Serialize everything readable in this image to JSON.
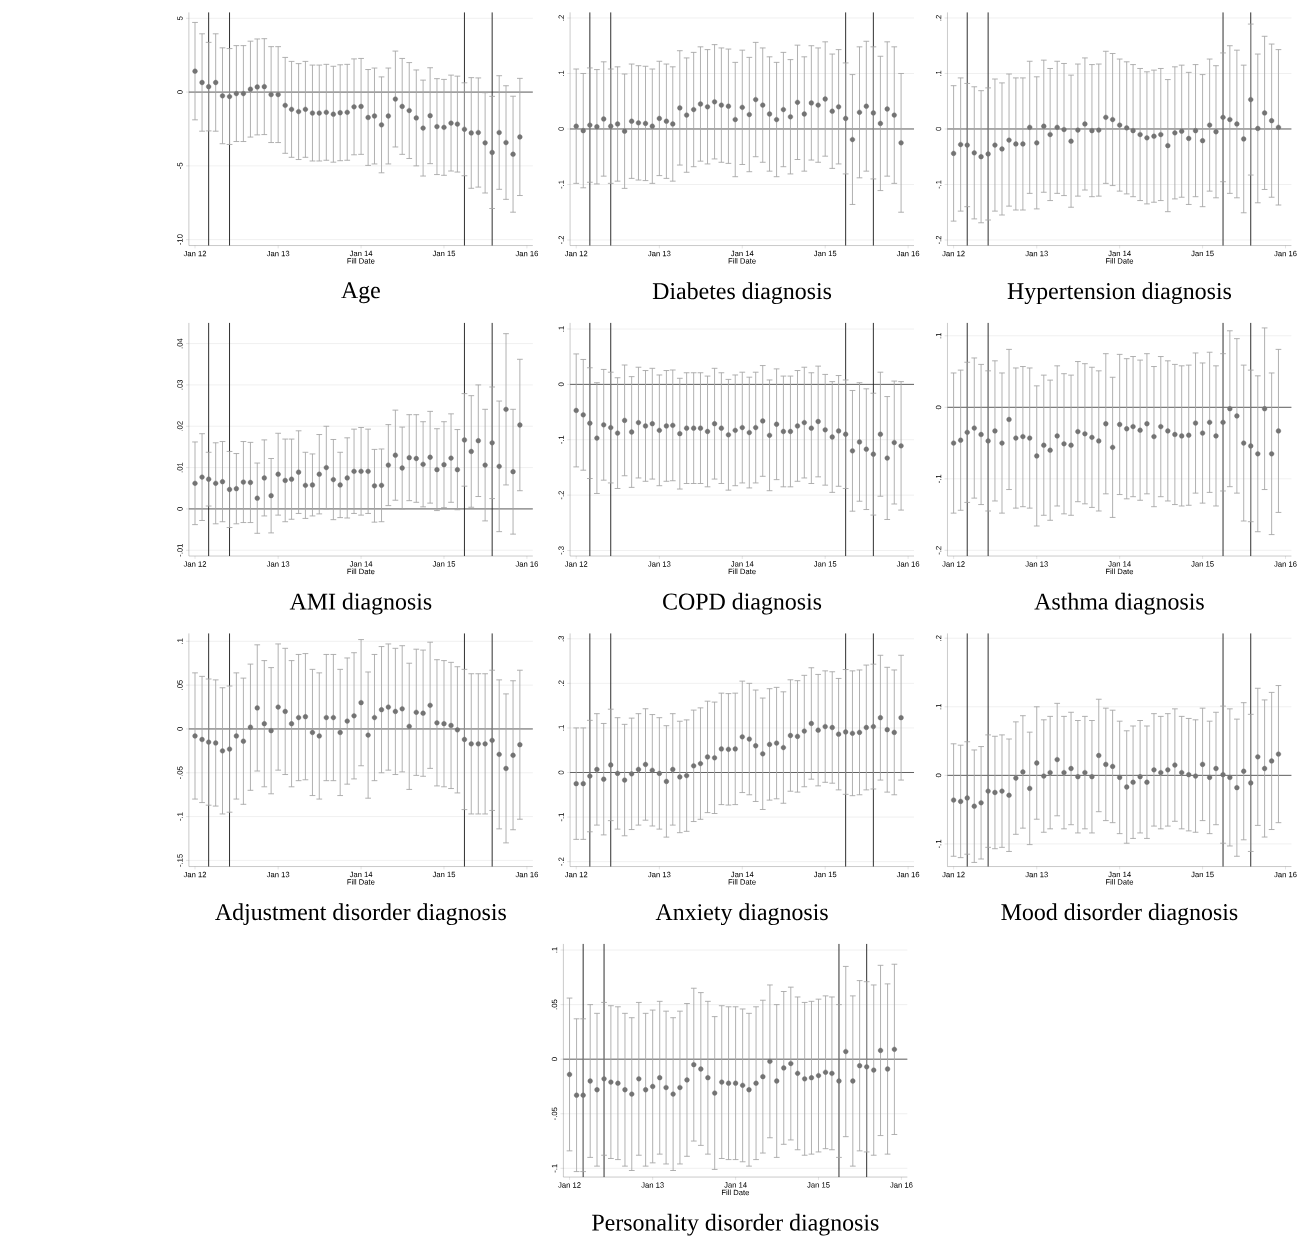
{
  "chart_data": [
    {
      "type": "scatter",
      "title": "Age",
      "xlabel": "Fill Date",
      "marker": "circle",
      "color": "#737373",
      "grid": "y",
      "x": [
        "2012-01",
        "2012-02",
        "2012-03",
        "2012-04",
        "2012-05",
        "2012-06",
        "2012-07",
        "2012-08",
        "2012-09",
        "2012-10",
        "2012-11",
        "2012-12",
        "2013-01",
        "2013-02",
        "2013-03",
        "2013-04",
        "2013-05",
        "2013-06",
        "2013-07",
        "2013-08",
        "2013-09",
        "2013-10",
        "2013-11",
        "2013-12",
        "2014-01",
        "2014-02",
        "2014-03",
        "2014-04",
        "2014-05",
        "2014-06",
        "2014-07",
        "2014-08",
        "2014-09",
        "2014-10",
        "2014-11",
        "2014-12",
        "2015-01",
        "2015-02",
        "2015-03",
        "2015-04",
        "2015-05",
        "2015-06",
        "2015-07",
        "2015-08",
        "2015-09",
        "2015-10",
        "2015-11",
        "2015-12"
      ],
      "values": [
        1.42,
        0.65,
        0.37,
        0.65,
        -0.25,
        -0.3,
        -0.1,
        -0.1,
        0.2,
        0.35,
        0.37,
        -0.17,
        -0.17,
        -0.9,
        -1.17,
        -1.32,
        -1.17,
        -1.42,
        -1.42,
        -1.37,
        -1.5,
        -1.4,
        -1.37,
        -1.0,
        -0.97,
        -1.72,
        -1.62,
        -2.22,
        -1.62,
        -0.47,
        -0.97,
        -1.25,
        -1.75,
        -2.44,
        -1.6,
        -2.34,
        -2.39,
        -2.1,
        -2.17,
        -2.52,
        -2.77,
        -2.74,
        -3.44,
        -4.09,
        -2.74,
        -3.42,
        -4.21,
        -3.04
      ],
      "errors": [
        3.3,
        3.3,
        3.0,
        3.3,
        3.25,
        3.25,
        3.25,
        3.25,
        3.25,
        3.25,
        3.25,
        3.25,
        3.25,
        3.25,
        3.25,
        3.25,
        3.25,
        3.25,
        3.25,
        3.25,
        3.25,
        3.25,
        3.25,
        3.25,
        3.25,
        3.25,
        3.25,
        3.25,
        3.25,
        3.25,
        3.25,
        3.25,
        3.25,
        3.25,
        3.25,
        3.25,
        3.25,
        3.25,
        3.25,
        3.15,
        3.75,
        3.7,
        3.4,
        3.8,
        3.85,
        3.85,
        3.93,
        3.97
      ],
      "xlim": [
        "2011-12-05",
        "2016-01-27"
      ],
      "xticks": [
        {
          "value": "2012-01",
          "label": "Jan 12"
        },
        {
          "value": "2013-01",
          "label": "Jan 13"
        },
        {
          "value": "2014-01",
          "label": "Jan 14"
        },
        {
          "value": "2015-01",
          "label": "Jan 15"
        },
        {
          "value": "2016-01",
          "label": "Jan 16"
        }
      ],
      "ylim": [
        -10.4,
        5.4
      ],
      "yticks": [
        -10,
        -5,
        0,
        5
      ],
      "ref_lines": [
        {
          "axis": "y",
          "value": 0,
          "color": "#595959"
        },
        {
          "axis": "x",
          "value": "2012-03",
          "color": "#262626"
        },
        {
          "axis": "x",
          "value": "2012-06",
          "color": "#262626"
        },
        {
          "axis": "x",
          "value": "2015-04",
          "color": "#262626"
        },
        {
          "axis": "x",
          "value": "2015-08",
          "color": "#262626"
        }
      ]
    },
    {
      "type": "scatter",
      "title": "Diabetes diagnosis",
      "xlabel": "Fill Date",
      "marker": "circle",
      "color": "#737373",
      "grid": "y",
      "x": [
        "2012-01",
        "2012-02",
        "2012-03",
        "2012-04",
        "2012-05",
        "2012-06",
        "2012-07",
        "2012-08",
        "2012-09",
        "2012-10",
        "2012-11",
        "2012-12",
        "2013-01",
        "2013-02",
        "2013-03",
        "2013-04",
        "2013-05",
        "2013-06",
        "2013-07",
        "2013-08",
        "2013-09",
        "2013-10",
        "2013-11",
        "2013-12",
        "2014-01",
        "2014-02",
        "2014-03",
        "2014-04",
        "2014-05",
        "2014-06",
        "2014-07",
        "2014-08",
        "2014-09",
        "2014-10",
        "2014-11",
        "2014-12",
        "2015-01",
        "2015-02",
        "2015-03",
        "2015-04",
        "2015-05",
        "2015-06",
        "2015-07",
        "2015-08",
        "2015-09",
        "2015-10",
        "2015-11",
        "2015-12"
      ],
      "values": [
        0.005,
        -0.003,
        0.007,
        0.004,
        0.018,
        0.005,
        0.009,
        -0.004,
        0.014,
        0.011,
        0.01,
        0.005,
        0.019,
        0.014,
        0.009,
        0.038,
        0.025,
        0.035,
        0.045,
        0.04,
        0.049,
        0.043,
        0.041,
        0.017,
        0.039,
        0.026,
        0.053,
        0.043,
        0.027,
        0.017,
        0.035,
        0.022,
        0.048,
        0.027,
        0.047,
        0.043,
        0.054,
        0.032,
        0.04,
        0.019,
        -0.019,
        0.03,
        0.041,
        0.029,
        0.01,
        0.036,
        0.025,
        -0.025
      ],
      "errors": [
        0.103,
        0.103,
        0.103,
        0.103,
        0.103,
        0.103,
        0.103,
        0.103,
        0.103,
        0.103,
        0.103,
        0.103,
        0.103,
        0.103,
        0.103,
        0.103,
        0.103,
        0.103,
        0.103,
        0.103,
        0.103,
        0.103,
        0.103,
        0.103,
        0.103,
        0.103,
        0.103,
        0.103,
        0.103,
        0.103,
        0.103,
        0.103,
        0.103,
        0.103,
        0.103,
        0.103,
        0.103,
        0.103,
        0.103,
        0.1,
        0.117,
        0.118,
        0.117,
        0.119,
        0.121,
        0.121,
        0.123,
        0.125
      ],
      "xlim": [
        "2011-12-05",
        "2016-01-27"
      ],
      "xticks": [
        {
          "value": "2012-01",
          "label": "Jan 12"
        },
        {
          "value": "2013-01",
          "label": "Jan 13"
        },
        {
          "value": "2014-01",
          "label": "Jan 14"
        },
        {
          "value": "2015-01",
          "label": "Jan 15"
        },
        {
          "value": "2016-01",
          "label": "Jan 16"
        }
      ],
      "ylim": [
        -0.21,
        0.21
      ],
      "yticks": [
        {
          "value": -0.2,
          "label": "-.2"
        },
        {
          "value": -0.1,
          "label": "-.1"
        },
        0,
        {
          "value": 0.1,
          "label": ".1"
        },
        {
          "value": 0.2,
          "label": ".2"
        }
      ],
      "ref_lines": [
        {
          "axis": "y",
          "value": 0,
          "color": "#595959"
        },
        {
          "axis": "x",
          "value": "2012-03",
          "color": "#262626"
        },
        {
          "axis": "x",
          "value": "2012-06",
          "color": "#262626"
        },
        {
          "axis": "x",
          "value": "2015-04",
          "color": "#262626"
        },
        {
          "axis": "x",
          "value": "2015-08",
          "color": "#262626"
        }
      ]
    },
    {
      "type": "scatter",
      "title": "Hypertension diagnosis",
      "xlabel": "Fill Date",
      "marker": "circle",
      "color": "#737373",
      "grid": "y",
      "x": [
        "2012-01",
        "2012-02",
        "2012-03",
        "2012-04",
        "2012-05",
        "2012-06",
        "2012-07",
        "2012-08",
        "2012-09",
        "2012-10",
        "2012-11",
        "2012-12",
        "2013-01",
        "2013-02",
        "2013-03",
        "2013-04",
        "2013-05",
        "2013-06",
        "2013-07",
        "2013-08",
        "2013-09",
        "2013-10",
        "2013-11",
        "2013-12",
        "2014-01",
        "2014-02",
        "2014-03",
        "2014-04",
        "2014-05",
        "2014-06",
        "2014-07",
        "2014-08",
        "2014-09",
        "2014-10",
        "2014-11",
        "2014-12",
        "2015-01",
        "2015-02",
        "2015-03",
        "2015-04",
        "2015-05",
        "2015-06",
        "2015-07",
        "2015-08",
        "2015-09",
        "2015-10",
        "2015-11",
        "2015-12"
      ],
      "values": [
        -0.044,
        -0.028,
        -0.029,
        -0.043,
        -0.05,
        -0.045,
        -0.029,
        -0.036,
        -0.02,
        -0.027,
        -0.027,
        0.003,
        -0.025,
        0.005,
        -0.01,
        0.003,
        -0.001,
        -0.022,
        -0.002,
        0.009,
        -0.003,
        -0.002,
        0.021,
        0.017,
        0.007,
        0.002,
        -0.003,
        -0.01,
        -0.016,
        -0.013,
        -0.01,
        -0.03,
        -0.007,
        -0.004,
        -0.017,
        -0.003,
        -0.021,
        0.007,
        -0.005,
        0.021,
        0.017,
        0.009,
        -0.018,
        0.053,
        0.001,
        0.029,
        0.015,
        0.003
      ],
      "errors": [
        0.122,
        0.12,
        0.111,
        0.119,
        0.119,
        0.119,
        0.119,
        0.119,
        0.119,
        0.119,
        0.119,
        0.119,
        0.119,
        0.119,
        0.119,
        0.119,
        0.119,
        0.119,
        0.119,
        0.119,
        0.119,
        0.119,
        0.119,
        0.119,
        0.119,
        0.119,
        0.119,
        0.119,
        0.119,
        0.119,
        0.119,
        0.119,
        0.119,
        0.119,
        0.119,
        0.119,
        0.119,
        0.119,
        0.119,
        0.116,
        0.133,
        0.133,
        0.133,
        0.136,
        0.134,
        0.138,
        0.138,
        0.14
      ],
      "xlim": [
        "2011-12-05",
        "2016-01-27"
      ],
      "xticks": [
        {
          "value": "2012-01",
          "label": "Jan 12"
        },
        {
          "value": "2013-01",
          "label": "Jan 13"
        },
        {
          "value": "2014-01",
          "label": "Jan 14"
        },
        {
          "value": "2015-01",
          "label": "Jan 15"
        },
        {
          "value": "2016-01",
          "label": "Jan 16"
        }
      ],
      "ylim": [
        -0.21,
        0.21
      ],
      "yticks": [
        {
          "value": -0.2,
          "label": "-.2"
        },
        {
          "value": -0.1,
          "label": "-.1"
        },
        0,
        {
          "value": 0.1,
          "label": ".1"
        },
        {
          "value": 0.2,
          "label": ".2"
        }
      ],
      "ref_lines": [
        {
          "axis": "y",
          "value": 0,
          "color": "#595959"
        },
        {
          "axis": "x",
          "value": "2012-03",
          "color": "#262626"
        },
        {
          "axis": "x",
          "value": "2012-06",
          "color": "#262626"
        },
        {
          "axis": "x",
          "value": "2015-04",
          "color": "#262626"
        },
        {
          "axis": "x",
          "value": "2015-08",
          "color": "#262626"
        }
      ]
    },
    {
      "type": "scatter",
      "title": "AMI diagnosis",
      "xlabel": "Fill Date",
      "marker": "circle",
      "color": "#737373",
      "grid": "y",
      "x": [
        "2012-01",
        "2012-02",
        "2012-03",
        "2012-04",
        "2012-05",
        "2012-06",
        "2012-07",
        "2012-08",
        "2012-09",
        "2012-10",
        "2012-11",
        "2012-12",
        "2013-01",
        "2013-02",
        "2013-03",
        "2013-04",
        "2013-05",
        "2013-06",
        "2013-07",
        "2013-08",
        "2013-09",
        "2013-10",
        "2013-11",
        "2013-12",
        "2014-01",
        "2014-02",
        "2014-03",
        "2014-04",
        "2014-05",
        "2014-06",
        "2014-07",
        "2014-08",
        "2014-09",
        "2014-10",
        "2014-11",
        "2014-12",
        "2015-01",
        "2015-02",
        "2015-03",
        "2015-04",
        "2015-05",
        "2015-06",
        "2015-07",
        "2015-08",
        "2015-09",
        "2015-10",
        "2015-11",
        "2015-12"
      ],
      "values": [
        0.0062,
        0.0077,
        0.0072,
        0.0062,
        0.0066,
        0.0047,
        0.0049,
        0.0065,
        0.0064,
        0.0026,
        0.0075,
        0.0032,
        0.0084,
        0.0069,
        0.0072,
        0.0089,
        0.0057,
        0.0058,
        0.0084,
        0.01,
        0.0071,
        0.0058,
        0.0075,
        0.0091,
        0.0091,
        0.0091,
        0.0056,
        0.0057,
        0.0106,
        0.013,
        0.0099,
        0.0124,
        0.0122,
        0.0108,
        0.0125,
        0.0095,
        0.0107,
        0.0123,
        0.0095,
        0.0167,
        0.0139,
        0.0165,
        0.0106,
        0.016,
        0.0103,
        0.0241,
        0.009,
        0.0203
      ],
      "errors": [
        0.01,
        0.0105,
        0.0065,
        0.0098,
        0.0097,
        0.0092,
        0.0085,
        0.0098,
        0.0097,
        0.0085,
        0.0092,
        0.009,
        0.0099,
        0.01,
        0.0097,
        0.01,
        0.008,
        0.0075,
        0.0096,
        0.01,
        0.0097,
        0.0079,
        0.0097,
        0.0102,
        0.0106,
        0.0102,
        0.0088,
        0.0088,
        0.0098,
        0.0109,
        0.0099,
        0.0104,
        0.0106,
        0.0103,
        0.0111,
        0.0099,
        0.0104,
        0.0107,
        0.0097,
        0.0112,
        0.0135,
        0.0135,
        0.0135,
        0.0135,
        0.0158,
        0.0183,
        0.0151,
        0.0159
      ],
      "xlim": [
        "2011-12-05",
        "2016-01-27"
      ],
      "xticks": [
        {
          "value": "2012-01",
          "label": "Jan 12"
        },
        {
          "value": "2013-01",
          "label": "Jan 13"
        },
        {
          "value": "2014-01",
          "label": "Jan 14"
        },
        {
          "value": "2015-01",
          "label": "Jan 15"
        },
        {
          "value": "2016-01",
          "label": "Jan 16"
        }
      ],
      "ylim": [
        -0.0114,
        0.045
      ],
      "yticks": [
        {
          "value": -0.01,
          "label": "-.01"
        },
        0,
        {
          "value": 0.01,
          "label": ".01"
        },
        {
          "value": 0.02,
          "label": ".02"
        },
        {
          "value": 0.03,
          "label": ".03"
        },
        {
          "value": 0.04,
          "label": ".04"
        }
      ],
      "ref_lines": [
        {
          "axis": "y",
          "value": 0,
          "color": "#595959"
        },
        {
          "axis": "x",
          "value": "2012-03",
          "color": "#262626"
        },
        {
          "axis": "x",
          "value": "2012-06",
          "color": "#262626"
        },
        {
          "axis": "x",
          "value": "2015-04",
          "color": "#262626"
        },
        {
          "axis": "x",
          "value": "2015-08",
          "color": "#262626"
        }
      ]
    },
    {
      "type": "scatter",
      "title": "COPD diagnosis",
      "xlabel": "Fill Date",
      "marker": "circle",
      "color": "#737373",
      "grid": "y",
      "x": [
        "2012-01",
        "2012-02",
        "2012-03",
        "2012-04",
        "2012-05",
        "2012-06",
        "2012-07",
        "2012-08",
        "2012-09",
        "2012-10",
        "2012-11",
        "2012-12",
        "2013-01",
        "2013-02",
        "2013-03",
        "2013-04",
        "2013-05",
        "2013-06",
        "2013-07",
        "2013-08",
        "2013-09",
        "2013-10",
        "2013-11",
        "2013-12",
        "2014-01",
        "2014-02",
        "2014-03",
        "2014-04",
        "2014-05",
        "2014-06",
        "2014-07",
        "2014-08",
        "2014-09",
        "2014-10",
        "2014-11",
        "2014-12",
        "2015-01",
        "2015-02",
        "2015-03",
        "2015-04",
        "2015-05",
        "2015-06",
        "2015-07",
        "2015-08",
        "2015-09",
        "2015-10",
        "2015-11",
        "2015-12"
      ],
      "values": [
        -0.047,
        -0.055,
        -0.07,
        -0.097,
        -0.073,
        -0.078,
        -0.088,
        -0.065,
        -0.086,
        -0.069,
        -0.075,
        -0.071,
        -0.083,
        -0.075,
        -0.074,
        -0.089,
        -0.079,
        -0.079,
        -0.079,
        -0.085,
        -0.071,
        -0.079,
        -0.091,
        -0.083,
        -0.078,
        -0.087,
        -0.078,
        -0.066,
        -0.092,
        -0.072,
        -0.085,
        -0.085,
        -0.075,
        -0.069,
        -0.079,
        -0.067,
        -0.082,
        -0.095,
        -0.084,
        -0.09,
        -0.12,
        -0.104,
        -0.117,
        -0.126,
        -0.09,
        -0.133,
        -0.105,
        -0.111
      ],
      "errors": [
        0.102,
        0.1,
        0.1,
        0.1,
        0.1,
        0.1,
        0.1,
        0.1,
        0.1,
        0.1,
        0.1,
        0.1,
        0.1,
        0.1,
        0.1,
        0.1,
        0.1,
        0.1,
        0.1,
        0.1,
        0.1,
        0.1,
        0.1,
        0.1,
        0.1,
        0.1,
        0.1,
        0.1,
        0.1,
        0.1,
        0.1,
        0.1,
        0.1,
        0.1,
        0.1,
        0.1,
        0.1,
        0.1,
        0.1,
        0.098,
        0.109,
        0.107,
        0.109,
        0.11,
        0.112,
        0.111,
        0.111,
        0.116
      ],
      "xlim": [
        "2011-12-05",
        "2016-01-27"
      ],
      "xticks": [
        {
          "value": "2012-01",
          "label": "Jan 12"
        },
        {
          "value": "2013-01",
          "label": "Jan 13"
        },
        {
          "value": "2014-01",
          "label": "Jan 14"
        },
        {
          "value": "2015-01",
          "label": "Jan 15"
        },
        {
          "value": "2016-01",
          "label": "Jan 16"
        }
      ],
      "ylim": [
        -0.31,
        0.111
      ],
      "yticks": [
        {
          "value": -0.3,
          "label": "-.3"
        },
        {
          "value": -0.2,
          "label": "-.2"
        },
        {
          "value": -0.1,
          "label": "-.1"
        },
        0,
        {
          "value": 0.1,
          "label": ".1"
        }
      ],
      "ref_lines": [
        {
          "axis": "y",
          "value": 0,
          "color": "#595959"
        },
        {
          "axis": "x",
          "value": "2012-03",
          "color": "#262626"
        },
        {
          "axis": "x",
          "value": "2012-06",
          "color": "#262626"
        },
        {
          "axis": "x",
          "value": "2015-04",
          "color": "#262626"
        },
        {
          "axis": "x",
          "value": "2015-08",
          "color": "#262626"
        }
      ]
    },
    {
      "type": "scatter",
      "title": "Asthma diagnosis",
      "xlabel": "Fill Date",
      "marker": "circle",
      "color": "#737373",
      "grid": "y",
      "x": [
        "2012-01",
        "2012-02",
        "2012-03",
        "2012-04",
        "2012-05",
        "2012-06",
        "2012-07",
        "2012-08",
        "2012-09",
        "2012-10",
        "2012-11",
        "2012-12",
        "2013-01",
        "2013-02",
        "2013-03",
        "2013-04",
        "2013-05",
        "2013-06",
        "2013-07",
        "2013-08",
        "2013-09",
        "2013-10",
        "2013-11",
        "2013-12",
        "2014-01",
        "2014-02",
        "2014-03",
        "2014-04",
        "2014-05",
        "2014-06",
        "2014-07",
        "2014-08",
        "2014-09",
        "2014-10",
        "2014-11",
        "2014-12",
        "2015-01",
        "2015-02",
        "2015-03",
        "2015-04",
        "2015-05",
        "2015-06",
        "2015-07",
        "2015-08",
        "2015-09",
        "2015-10",
        "2015-11",
        "2015-12"
      ],
      "values": [
        -0.05,
        -0.046,
        -0.035,
        -0.029,
        -0.038,
        -0.047,
        -0.033,
        -0.05,
        -0.017,
        -0.043,
        -0.041,
        -0.043,
        -0.068,
        -0.053,
        -0.06,
        -0.04,
        -0.051,
        -0.053,
        -0.034,
        -0.037,
        -0.042,
        -0.047,
        -0.023,
        -0.056,
        -0.024,
        -0.03,
        -0.027,
        -0.032,
        -0.023,
        -0.041,
        -0.027,
        -0.033,
        -0.038,
        -0.04,
        -0.039,
        -0.022,
        -0.036,
        -0.021,
        -0.04,
        -0.021,
        -0.002,
        -0.012,
        -0.05,
        -0.054,
        -0.065,
        -0.002,
        -0.065,
        -0.033
      ],
      "errors": [
        0.098,
        0.098,
        0.098,
        0.098,
        0.098,
        0.098,
        0.098,
        0.098,
        0.098,
        0.098,
        0.098,
        0.098,
        0.098,
        0.098,
        0.098,
        0.098,
        0.098,
        0.098,
        0.098,
        0.098,
        0.098,
        0.098,
        0.098,
        0.098,
        0.098,
        0.098,
        0.098,
        0.098,
        0.098,
        0.098,
        0.098,
        0.098,
        0.098,
        0.098,
        0.098,
        0.098,
        0.098,
        0.098,
        0.098,
        0.096,
        0.109,
        0.108,
        0.109,
        0.106,
        0.109,
        0.113,
        0.113,
        0.114
      ],
      "xlim": [
        "2011-12-05",
        "2016-01-27"
      ],
      "xticks": [
        {
          "value": "2012-01",
          "label": "Jan 12"
        },
        {
          "value": "2013-01",
          "label": "Jan 13"
        },
        {
          "value": "2014-01",
          "label": "Jan 14"
        },
        {
          "value": "2015-01",
          "label": "Jan 15"
        },
        {
          "value": "2016-01",
          "label": "Jan 16"
        }
      ],
      "ylim": [
        -0.208,
        0.118
      ],
      "yticks": [
        {
          "value": -0.2,
          "label": "-.2"
        },
        {
          "value": -0.1,
          "label": "-.1"
        },
        0,
        {
          "value": 0.1,
          "label": ".1"
        }
      ],
      "ref_lines": [
        {
          "axis": "y",
          "value": 0,
          "color": "#595959"
        },
        {
          "axis": "x",
          "value": "2012-03",
          "color": "#262626"
        },
        {
          "axis": "x",
          "value": "2012-06",
          "color": "#262626"
        },
        {
          "axis": "x",
          "value": "2015-04",
          "color": "#262626"
        },
        {
          "axis": "x",
          "value": "2015-08",
          "color": "#262626"
        }
      ]
    },
    {
      "type": "scatter",
      "title": "Adjustment disorder diagnosis",
      "xlabel": "Fill Date",
      "marker": "circle",
      "color": "#737373",
      "grid": "y",
      "x": [
        "2012-01",
        "2012-02",
        "2012-03",
        "2012-04",
        "2012-05",
        "2012-06",
        "2012-07",
        "2012-08",
        "2012-09",
        "2012-10",
        "2012-11",
        "2012-12",
        "2013-01",
        "2013-02",
        "2013-03",
        "2013-04",
        "2013-05",
        "2013-06",
        "2013-07",
        "2013-08",
        "2013-09",
        "2013-10",
        "2013-11",
        "2013-12",
        "2014-01",
        "2014-02",
        "2014-03",
        "2014-04",
        "2014-05",
        "2014-06",
        "2014-07",
        "2014-08",
        "2014-09",
        "2014-10",
        "2014-11",
        "2014-12",
        "2015-01",
        "2015-02",
        "2015-03",
        "2015-04",
        "2015-05",
        "2015-06",
        "2015-07",
        "2015-08",
        "2015-09",
        "2015-10",
        "2015-11",
        "2015-12"
      ],
      "values": [
        -0.008,
        -0.012,
        -0.015,
        -0.016,
        -0.025,
        -0.023,
        -0.008,
        -0.014,
        0.002,
        0.024,
        0.006,
        -0.002,
        0.025,
        0.02,
        0.006,
        0.013,
        0.014,
        -0.004,
        -0.008,
        0.013,
        0.013,
        -0.004,
        0.009,
        0.015,
        0.03,
        -0.007,
        0.013,
        0.022,
        0.025,
        0.02,
        0.023,
        0.003,
        0.019,
        0.018,
        0.027,
        0.007,
        0.006,
        0.004,
        -0.001,
        -0.012,
        -0.017,
        -0.017,
        -0.017,
        -0.013,
        -0.029,
        -0.045,
        -0.03,
        -0.018
      ],
      "errors": [
        0.072,
        0.072,
        0.072,
        0.072,
        0.072,
        0.072,
        0.072,
        0.072,
        0.072,
        0.072,
        0.072,
        0.072,
        0.072,
        0.072,
        0.072,
        0.072,
        0.072,
        0.072,
        0.072,
        0.072,
        0.072,
        0.072,
        0.072,
        0.072,
        0.072,
        0.072,
        0.072,
        0.072,
        0.072,
        0.072,
        0.072,
        0.072,
        0.072,
        0.072,
        0.072,
        0.072,
        0.072,
        0.072,
        0.072,
        0.08,
        0.08,
        0.08,
        0.08,
        0.08,
        0.085,
        0.085,
        0.085,
        0.085
      ],
      "xlim": [
        "2011-12-05",
        "2016-01-27"
      ],
      "xticks": [
        {
          "value": "2012-01",
          "label": "Jan 12"
        },
        {
          "value": "2013-01",
          "label": "Jan 13"
        },
        {
          "value": "2014-01",
          "label": "Jan 14"
        },
        {
          "value": "2015-01",
          "label": "Jan 15"
        },
        {
          "value": "2016-01",
          "label": "Jan 16"
        }
      ],
      "ylim": [
        -0.157,
        0.109
      ],
      "yticks": [
        {
          "value": -0.15,
          "label": "-.15"
        },
        {
          "value": -0.1,
          "label": "-.1"
        },
        {
          "value": -0.05,
          "label": "-.05"
        },
        0,
        {
          "value": 0.05,
          "label": ".05"
        },
        {
          "value": 0.1,
          "label": ".1"
        }
      ],
      "ref_lines": [
        {
          "axis": "y",
          "value": 0,
          "color": "#595959"
        },
        {
          "axis": "x",
          "value": "2012-03",
          "color": "#262626"
        },
        {
          "axis": "x",
          "value": "2012-06",
          "color": "#262626"
        },
        {
          "axis": "x",
          "value": "2015-04",
          "color": "#262626"
        },
        {
          "axis": "x",
          "value": "2015-08",
          "color": "#262626"
        }
      ]
    },
    {
      "type": "scatter",
      "title": "Anxiety diagnosis",
      "xlabel": "Fill Date",
      "marker": "circle",
      "color": "#737373",
      "grid": "y",
      "x": [
        "2012-01",
        "2012-02",
        "2012-03",
        "2012-04",
        "2012-05",
        "2012-06",
        "2012-07",
        "2012-08",
        "2012-09",
        "2012-10",
        "2012-11",
        "2012-12",
        "2013-01",
        "2013-02",
        "2013-03",
        "2013-04",
        "2013-05",
        "2013-06",
        "2013-07",
        "2013-08",
        "2013-09",
        "2013-10",
        "2013-11",
        "2013-12",
        "2014-01",
        "2014-02",
        "2014-03",
        "2014-04",
        "2014-05",
        "2014-06",
        "2014-07",
        "2014-08",
        "2014-09",
        "2014-10",
        "2014-11",
        "2014-12",
        "2015-01",
        "2015-02",
        "2015-03",
        "2015-04",
        "2015-05",
        "2015-06",
        "2015-07",
        "2015-08",
        "2015-09",
        "2015-10",
        "2015-11",
        "2015-12"
      ],
      "values": [
        -0.025,
        -0.025,
        -0.008,
        0.007,
        -0.015,
        0.017,
        -0.002,
        -0.017,
        -0.003,
        0.007,
        0.018,
        0.005,
        -0.002,
        -0.02,
        0.007,
        -0.01,
        -0.007,
        0.015,
        0.02,
        0.035,
        0.033,
        0.053,
        0.052,
        0.053,
        0.08,
        0.075,
        0.06,
        0.042,
        0.063,
        0.066,
        0.056,
        0.083,
        0.081,
        0.093,
        0.11,
        0.095,
        0.103,
        0.101,
        0.086,
        0.091,
        0.088,
        0.09,
        0.101,
        0.103,
        0.123,
        0.096,
        0.09,
        0.123
      ],
      "errors": [
        0.125,
        0.125,
        0.125,
        0.125,
        0.125,
        0.125,
        0.125,
        0.125,
        0.125,
        0.125,
        0.125,
        0.125,
        0.125,
        0.125,
        0.125,
        0.125,
        0.125,
        0.125,
        0.125,
        0.125,
        0.125,
        0.125,
        0.125,
        0.125,
        0.125,
        0.125,
        0.125,
        0.125,
        0.125,
        0.125,
        0.125,
        0.125,
        0.125,
        0.125,
        0.125,
        0.125,
        0.125,
        0.125,
        0.125,
        0.14,
        0.14,
        0.14,
        0.14,
        0.14,
        0.14,
        0.14,
        0.14,
        0.14
      ],
      "xlim": [
        "2011-12-05",
        "2016-01-27"
      ],
      "xticks": [
        {
          "value": "2012-01",
          "label": "Jan 12"
        },
        {
          "value": "2013-01",
          "label": "Jan 13"
        },
        {
          "value": "2014-01",
          "label": "Jan 14"
        },
        {
          "value": "2015-01",
          "label": "Jan 15"
        },
        {
          "value": "2016-01",
          "label": "Jan 16"
        }
      ],
      "ylim": [
        -0.211,
        0.312
      ],
      "yticks": [
        {
          "value": -0.2,
          "label": "-.2"
        },
        {
          "value": -0.1,
          "label": "-.1"
        },
        0,
        {
          "value": 0.1,
          "label": ".1"
        },
        {
          "value": 0.2,
          "label": ".2"
        },
        {
          "value": 0.3,
          "label": ".3"
        }
      ],
      "ref_lines": [
        {
          "axis": "y",
          "value": 0,
          "color": "#595959"
        },
        {
          "axis": "x",
          "value": "2012-03",
          "color": "#262626"
        },
        {
          "axis": "x",
          "value": "2012-06",
          "color": "#262626"
        },
        {
          "axis": "x",
          "value": "2015-04",
          "color": "#262626"
        },
        {
          "axis": "x",
          "value": "2015-08",
          "color": "#262626"
        }
      ]
    },
    {
      "type": "scatter",
      "title": "Mood disorder diagnosis",
      "xlabel": "Fill Date",
      "marker": "circle",
      "color": "#737373",
      "grid": "y",
      "x": [
        "2012-01",
        "2012-02",
        "2012-03",
        "2012-04",
        "2012-05",
        "2012-06",
        "2012-07",
        "2012-08",
        "2012-09",
        "2012-10",
        "2012-11",
        "2012-12",
        "2013-01",
        "2013-02",
        "2013-03",
        "2013-04",
        "2013-05",
        "2013-06",
        "2013-07",
        "2013-08",
        "2013-09",
        "2013-10",
        "2013-11",
        "2013-12",
        "2014-01",
        "2014-02",
        "2014-03",
        "2014-04",
        "2014-05",
        "2014-06",
        "2014-07",
        "2014-08",
        "2014-09",
        "2014-10",
        "2014-11",
        "2014-12",
        "2015-01",
        "2015-02",
        "2015-03",
        "2015-04",
        "2015-05",
        "2015-06",
        "2015-07",
        "2015-08",
        "2015-09",
        "2015-10",
        "2015-11",
        "2015-12"
      ],
      "values": [
        -0.036,
        -0.038,
        -0.033,
        -0.045,
        -0.04,
        -0.023,
        -0.025,
        -0.023,
        -0.029,
        -0.004,
        0.005,
        -0.019,
        0.018,
        -0.001,
        0.004,
        0.023,
        0.004,
        0.01,
        -0.002,
        0.004,
        -0.002,
        0.029,
        0.016,
        0.013,
        -0.003,
        -0.017,
        -0.01,
        -0.002,
        -0.01,
        0.008,
        0.004,
        0.008,
        0.015,
        0.004,
        0.001,
        -0.001,
        0.016,
        -0.003,
        0.01,
        0.001,
        -0.003,
        -0.018,
        0.006,
        -0.011,
        0.027,
        0.01,
        0.021,
        0.031
      ],
      "errors": [
        0.082,
        0.082,
        0.082,
        0.082,
        0.082,
        0.082,
        0.082,
        0.082,
        0.082,
        0.082,
        0.082,
        0.082,
        0.082,
        0.082,
        0.082,
        0.082,
        0.082,
        0.082,
        0.082,
        0.082,
        0.082,
        0.082,
        0.082,
        0.082,
        0.082,
        0.082,
        0.082,
        0.082,
        0.082,
        0.082,
        0.082,
        0.082,
        0.082,
        0.082,
        0.082,
        0.082,
        0.082,
        0.082,
        0.082,
        0.1,
        0.1,
        0.1,
        0.1,
        0.1,
        0.1,
        0.1,
        0.1,
        0.1
      ],
      "xlim": [
        "2011-12-05",
        "2016-01-27"
      ],
      "xticks": [
        {
          "value": "2012-01",
          "label": "Jan 12"
        },
        {
          "value": "2013-01",
          "label": "Jan 13"
        },
        {
          "value": "2014-01",
          "label": "Jan 14"
        },
        {
          "value": "2015-01",
          "label": "Jan 15"
        },
        {
          "value": "2016-01",
          "label": "Jan 16"
        }
      ],
      "ylim": [
        -0.133,
        0.207
      ],
      "yticks": [
        {
          "value": -0.1,
          "label": "-.1"
        },
        0,
        {
          "value": 0.1,
          "label": ".1"
        },
        {
          "value": 0.2,
          "label": ".2"
        }
      ],
      "ref_lines": [
        {
          "axis": "y",
          "value": 0,
          "color": "#595959"
        },
        {
          "axis": "x",
          "value": "2012-03",
          "color": "#262626"
        },
        {
          "axis": "x",
          "value": "2012-06",
          "color": "#262626"
        },
        {
          "axis": "x",
          "value": "2015-04",
          "color": "#262626"
        },
        {
          "axis": "x",
          "value": "2015-08",
          "color": "#262626"
        }
      ]
    },
    {
      "type": "scatter",
      "title": "Personality disorder diagnosis",
      "xlabel": "Fill Date",
      "marker": "circle",
      "color": "#737373",
      "grid": "y",
      "x": [
        "2012-01",
        "2012-02",
        "2012-03",
        "2012-04",
        "2012-05",
        "2012-06",
        "2012-07",
        "2012-08",
        "2012-09",
        "2012-10",
        "2012-11",
        "2012-12",
        "2013-01",
        "2013-02",
        "2013-03",
        "2013-04",
        "2013-05",
        "2013-06",
        "2013-07",
        "2013-08",
        "2013-09",
        "2013-10",
        "2013-11",
        "2013-12",
        "2014-01",
        "2014-02",
        "2014-03",
        "2014-04",
        "2014-05",
        "2014-06",
        "2014-07",
        "2014-08",
        "2014-09",
        "2014-10",
        "2014-11",
        "2014-12",
        "2015-01",
        "2015-02",
        "2015-03",
        "2015-04",
        "2015-05",
        "2015-06",
        "2015-07",
        "2015-08",
        "2015-09",
        "2015-10",
        "2015-11",
        "2015-12"
      ],
      "values": [
        -0.014,
        -0.033,
        -0.033,
        -0.02,
        -0.028,
        -0.018,
        -0.021,
        -0.022,
        -0.028,
        -0.032,
        -0.018,
        -0.028,
        -0.025,
        -0.017,
        -0.026,
        -0.032,
        -0.026,
        -0.019,
        -0.005,
        -0.009,
        -0.017,
        -0.031,
        -0.021,
        -0.022,
        -0.022,
        -0.024,
        -0.028,
        -0.022,
        -0.016,
        -0.002,
        -0.02,
        -0.008,
        -0.004,
        -0.013,
        -0.018,
        -0.017,
        -0.015,
        -0.012,
        -0.013,
        -0.02,
        0.007,
        -0.02,
        -0.006,
        -0.007,
        -0.01,
        0.008,
        -0.009,
        0.009
      ],
      "errors": [
        0.07,
        0.07,
        0.07,
        0.07,
        0.07,
        0.07,
        0.07,
        0.07,
        0.07,
        0.07,
        0.07,
        0.07,
        0.07,
        0.07,
        0.07,
        0.07,
        0.07,
        0.07,
        0.07,
        0.07,
        0.07,
        0.07,
        0.07,
        0.07,
        0.07,
        0.07,
        0.07,
        0.07,
        0.07,
        0.07,
        0.07,
        0.07,
        0.07,
        0.07,
        0.07,
        0.07,
        0.07,
        0.07,
        0.07,
        0.07,
        0.078,
        0.078,
        0.078,
        0.078,
        0.078,
        0.078,
        0.078,
        0.078
      ],
      "xlim": [
        "2011-12-05",
        "2016-01-27"
      ],
      "xticks": [
        {
          "value": "2012-01",
          "label": "Jan 12"
        },
        {
          "value": "2013-01",
          "label": "Jan 13"
        },
        {
          "value": "2014-01",
          "label": "Jan 14"
        },
        {
          "value": "2015-01",
          "label": "Jan 15"
        },
        {
          "value": "2016-01",
          "label": "Jan 16"
        }
      ],
      "ylim": [
        -0.108,
        0.1056
      ],
      "yticks": [
        {
          "value": -0.1,
          "label": "-.1"
        },
        {
          "value": -0.05,
          "label": "-.05"
        },
        0,
        {
          "value": 0.05,
          "label": ".05"
        },
        {
          "value": 0.1,
          "label": ".1"
        }
      ],
      "ref_lines": [
        {
          "axis": "y",
          "value": 0,
          "color": "#595959"
        },
        {
          "axis": "x",
          "value": "2012-03",
          "color": "#262626"
        },
        {
          "axis": "x",
          "value": "2012-06",
          "color": "#262626"
        },
        {
          "axis": "x",
          "value": "2015-04",
          "color": "#262626"
        },
        {
          "axis": "x",
          "value": "2015-08",
          "color": "#262626"
        }
      ]
    }
  ]
}
